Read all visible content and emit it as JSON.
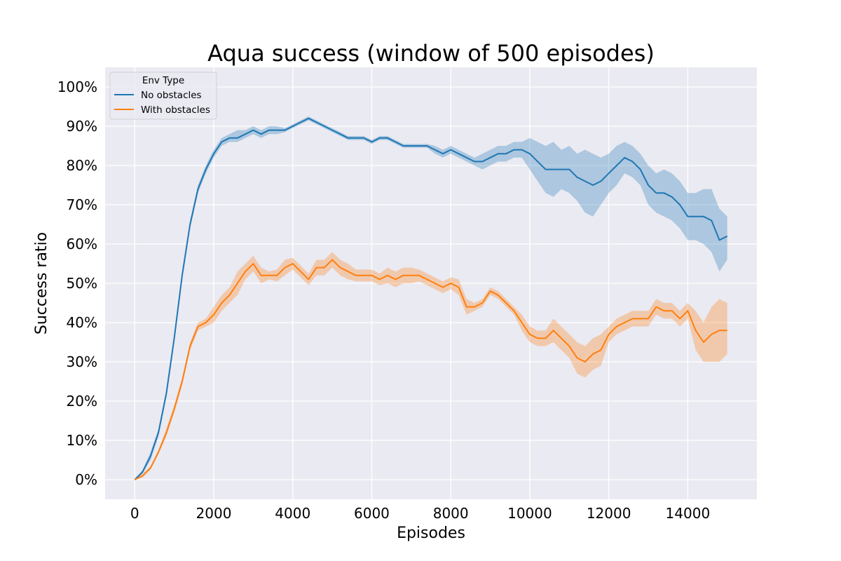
{
  "chart_data": {
    "type": "line",
    "title": "Aqua success (window of 500 episodes)",
    "xlabel": "Episodes",
    "ylabel": "Success ratio",
    "xlim": [
      -750,
      15750
    ],
    "ylim": [
      -0.05,
      1.05
    ],
    "xticks": [
      0,
      2000,
      4000,
      6000,
      8000,
      10000,
      12000,
      14000
    ],
    "xtick_labels": [
      "0",
      "2000",
      "4000",
      "6000",
      "8000",
      "10000",
      "12000",
      "14000"
    ],
    "yticks": [
      0,
      0.1,
      0.2,
      0.3,
      0.4,
      0.5,
      0.6,
      0.7,
      0.8,
      0.9,
      1.0
    ],
    "ytick_labels": [
      "0%",
      "10%",
      "20%",
      "30%",
      "40%",
      "50%",
      "60%",
      "70%",
      "80%",
      "90%",
      "100%"
    ],
    "grid": true,
    "legend": {
      "title": "Env Type",
      "placement": "top-left"
    },
    "series": [
      {
        "name": "No obstacles",
        "color": "#1f77b4",
        "x": [
          0,
          200,
          400,
          600,
          800,
          1000,
          1200,
          1400,
          1600,
          1800,
          2000,
          2200,
          2400,
          2600,
          2800,
          3000,
          3200,
          3400,
          3600,
          3800,
          4000,
          4200,
          4400,
          4600,
          4800,
          5000,
          5200,
          5400,
          5600,
          5800,
          6000,
          6200,
          6400,
          6600,
          6800,
          7000,
          7200,
          7400,
          7600,
          7800,
          8000,
          8200,
          8400,
          8600,
          8800,
          9000,
          9200,
          9400,
          9600,
          9800,
          10000,
          10200,
          10400,
          10600,
          10800,
          11000,
          11200,
          11400,
          11600,
          11800,
          12000,
          12200,
          12400,
          12600,
          12800,
          13000,
          13200,
          13400,
          13600,
          13800,
          14000,
          14200,
          14400,
          14600,
          14800,
          15000
        ],
        "y": [
          0.0,
          0.02,
          0.06,
          0.12,
          0.22,
          0.36,
          0.52,
          0.65,
          0.74,
          0.79,
          0.83,
          0.86,
          0.87,
          0.87,
          0.88,
          0.89,
          0.88,
          0.89,
          0.89,
          0.89,
          0.9,
          0.91,
          0.92,
          0.91,
          0.9,
          0.89,
          0.88,
          0.87,
          0.87,
          0.87,
          0.86,
          0.87,
          0.87,
          0.86,
          0.85,
          0.85,
          0.85,
          0.85,
          0.84,
          0.83,
          0.84,
          0.83,
          0.82,
          0.81,
          0.81,
          0.82,
          0.83,
          0.83,
          0.84,
          0.84,
          0.83,
          0.81,
          0.79,
          0.79,
          0.79,
          0.79,
          0.77,
          0.76,
          0.75,
          0.76,
          0.78,
          0.8,
          0.82,
          0.81,
          0.79,
          0.75,
          0.73,
          0.73,
          0.72,
          0.7,
          0.67,
          0.67,
          0.67,
          0.66,
          0.61,
          0.62
        ],
        "lower": [
          0.0,
          0.015,
          0.05,
          0.11,
          0.21,
          0.35,
          0.51,
          0.64,
          0.73,
          0.78,
          0.82,
          0.85,
          0.86,
          0.86,
          0.87,
          0.88,
          0.87,
          0.88,
          0.88,
          0.885,
          0.895,
          0.905,
          0.915,
          0.905,
          0.895,
          0.885,
          0.875,
          0.865,
          0.865,
          0.865,
          0.855,
          0.865,
          0.865,
          0.855,
          0.845,
          0.845,
          0.845,
          0.845,
          0.83,
          0.82,
          0.83,
          0.82,
          0.81,
          0.8,
          0.79,
          0.8,
          0.81,
          0.81,
          0.82,
          0.82,
          0.79,
          0.76,
          0.73,
          0.72,
          0.74,
          0.73,
          0.71,
          0.68,
          0.67,
          0.7,
          0.73,
          0.75,
          0.78,
          0.77,
          0.75,
          0.7,
          0.68,
          0.67,
          0.66,
          0.64,
          0.61,
          0.61,
          0.6,
          0.58,
          0.53,
          0.56
        ],
        "upper": [
          0.0,
          0.025,
          0.07,
          0.13,
          0.23,
          0.37,
          0.53,
          0.66,
          0.75,
          0.8,
          0.84,
          0.87,
          0.88,
          0.89,
          0.89,
          0.9,
          0.89,
          0.9,
          0.9,
          0.895,
          0.905,
          0.915,
          0.925,
          0.915,
          0.905,
          0.895,
          0.885,
          0.875,
          0.875,
          0.875,
          0.865,
          0.875,
          0.875,
          0.865,
          0.855,
          0.855,
          0.855,
          0.855,
          0.85,
          0.84,
          0.85,
          0.84,
          0.83,
          0.82,
          0.83,
          0.84,
          0.85,
          0.85,
          0.86,
          0.86,
          0.87,
          0.86,
          0.85,
          0.86,
          0.84,
          0.85,
          0.83,
          0.84,
          0.83,
          0.82,
          0.83,
          0.85,
          0.86,
          0.85,
          0.83,
          0.8,
          0.78,
          0.79,
          0.78,
          0.76,
          0.73,
          0.73,
          0.74,
          0.74,
          0.69,
          0.67
        ]
      },
      {
        "name": "With obstacles",
        "color": "#ff7f0e",
        "x": [
          0,
          200,
          400,
          600,
          800,
          1000,
          1200,
          1400,
          1600,
          1800,
          2000,
          2200,
          2400,
          2600,
          2800,
          3000,
          3200,
          3400,
          3600,
          3800,
          4000,
          4200,
          4400,
          4600,
          4800,
          5000,
          5200,
          5400,
          5600,
          5800,
          6000,
          6200,
          6400,
          6600,
          6800,
          7000,
          7200,
          7400,
          7600,
          7800,
          8000,
          8200,
          8400,
          8600,
          8800,
          9000,
          9200,
          9400,
          9600,
          9800,
          10000,
          10200,
          10400,
          10600,
          10800,
          11000,
          11200,
          11400,
          11600,
          11800,
          12000,
          12200,
          12400,
          12600,
          12800,
          13000,
          13200,
          13400,
          13600,
          13800,
          14000,
          14200,
          14400,
          14600,
          14800,
          15000
        ],
        "y": [
          0.0,
          0.01,
          0.03,
          0.07,
          0.12,
          0.18,
          0.25,
          0.34,
          0.39,
          0.4,
          0.42,
          0.45,
          0.47,
          0.5,
          0.53,
          0.55,
          0.52,
          0.52,
          0.52,
          0.54,
          0.55,
          0.53,
          0.51,
          0.54,
          0.54,
          0.56,
          0.54,
          0.53,
          0.52,
          0.52,
          0.52,
          0.51,
          0.52,
          0.51,
          0.52,
          0.52,
          0.52,
          0.51,
          0.5,
          0.49,
          0.5,
          0.49,
          0.44,
          0.44,
          0.45,
          0.48,
          0.47,
          0.45,
          0.43,
          0.4,
          0.37,
          0.36,
          0.36,
          0.38,
          0.36,
          0.34,
          0.31,
          0.3,
          0.32,
          0.33,
          0.37,
          0.39,
          0.4,
          0.41,
          0.41,
          0.41,
          0.44,
          0.43,
          0.43,
          0.41,
          0.43,
          0.38,
          0.35,
          0.37,
          0.38,
          0.38
        ],
        "lower": [
          0.0,
          0.005,
          0.025,
          0.065,
          0.11,
          0.17,
          0.24,
          0.33,
          0.38,
          0.39,
          0.4,
          0.43,
          0.45,
          0.47,
          0.51,
          0.53,
          0.5,
          0.51,
          0.505,
          0.52,
          0.535,
          0.515,
          0.495,
          0.52,
          0.52,
          0.54,
          0.52,
          0.51,
          0.505,
          0.505,
          0.505,
          0.495,
          0.5,
          0.49,
          0.5,
          0.5,
          0.505,
          0.495,
          0.485,
          0.475,
          0.485,
          0.47,
          0.42,
          0.43,
          0.44,
          0.47,
          0.46,
          0.44,
          0.42,
          0.38,
          0.35,
          0.34,
          0.34,
          0.35,
          0.33,
          0.31,
          0.27,
          0.26,
          0.28,
          0.29,
          0.35,
          0.37,
          0.38,
          0.39,
          0.39,
          0.39,
          0.42,
          0.41,
          0.41,
          0.39,
          0.41,
          0.33,
          0.3,
          0.3,
          0.3,
          0.32
        ],
        "upper": [
          0.0,
          0.015,
          0.035,
          0.075,
          0.13,
          0.19,
          0.26,
          0.35,
          0.4,
          0.41,
          0.44,
          0.47,
          0.49,
          0.53,
          0.55,
          0.57,
          0.54,
          0.53,
          0.535,
          0.56,
          0.565,
          0.545,
          0.525,
          0.56,
          0.56,
          0.58,
          0.56,
          0.55,
          0.535,
          0.535,
          0.535,
          0.525,
          0.54,
          0.53,
          0.54,
          0.54,
          0.535,
          0.525,
          0.515,
          0.505,
          0.515,
          0.51,
          0.46,
          0.45,
          0.46,
          0.49,
          0.48,
          0.46,
          0.44,
          0.42,
          0.39,
          0.38,
          0.38,
          0.41,
          0.39,
          0.37,
          0.35,
          0.34,
          0.36,
          0.37,
          0.39,
          0.41,
          0.42,
          0.43,
          0.43,
          0.43,
          0.46,
          0.45,
          0.45,
          0.43,
          0.45,
          0.43,
          0.4,
          0.44,
          0.46,
          0.45
        ]
      }
    ]
  }
}
